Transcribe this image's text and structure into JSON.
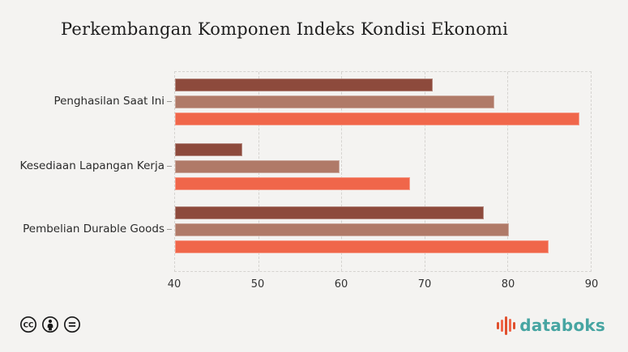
{
  "chart_data": {
    "type": "bar",
    "orientation": "horizontal",
    "title": "Perkembangan Komponen Indeks Kondisi Ekonomi",
    "categories": [
      "Penghasilan Saat Ini",
      "Kesediaan Lapangan Kerja",
      "Pembelian Durable Goods"
    ],
    "series": [
      {
        "color": "#8d4a3c",
        "values": [
          71.0,
          48.1,
          77.1
        ]
      },
      {
        "color": "#b07a68",
        "values": [
          78.4,
          59.8,
          80.2
        ]
      },
      {
        "color": "#f0664a",
        "values": [
          88.6,
          68.3,
          84.9
        ]
      }
    ],
    "xlim": [
      40,
      90
    ],
    "xticks": [
      40,
      50,
      60,
      70,
      80,
      90
    ],
    "grid": "vertical-dashed",
    "legend_position": "none",
    "background_color": "#f4f3f1"
  },
  "footer": {
    "license_icons": [
      "cc",
      "attribution",
      "no-derivatives"
    ],
    "logo_text": "databoks",
    "logo_text_color": "#47a5a2",
    "logo_icon_colors": [
      "#e0502e",
      "#f0664a",
      "#e0502e",
      "#f0664a",
      "#e0502e"
    ]
  }
}
